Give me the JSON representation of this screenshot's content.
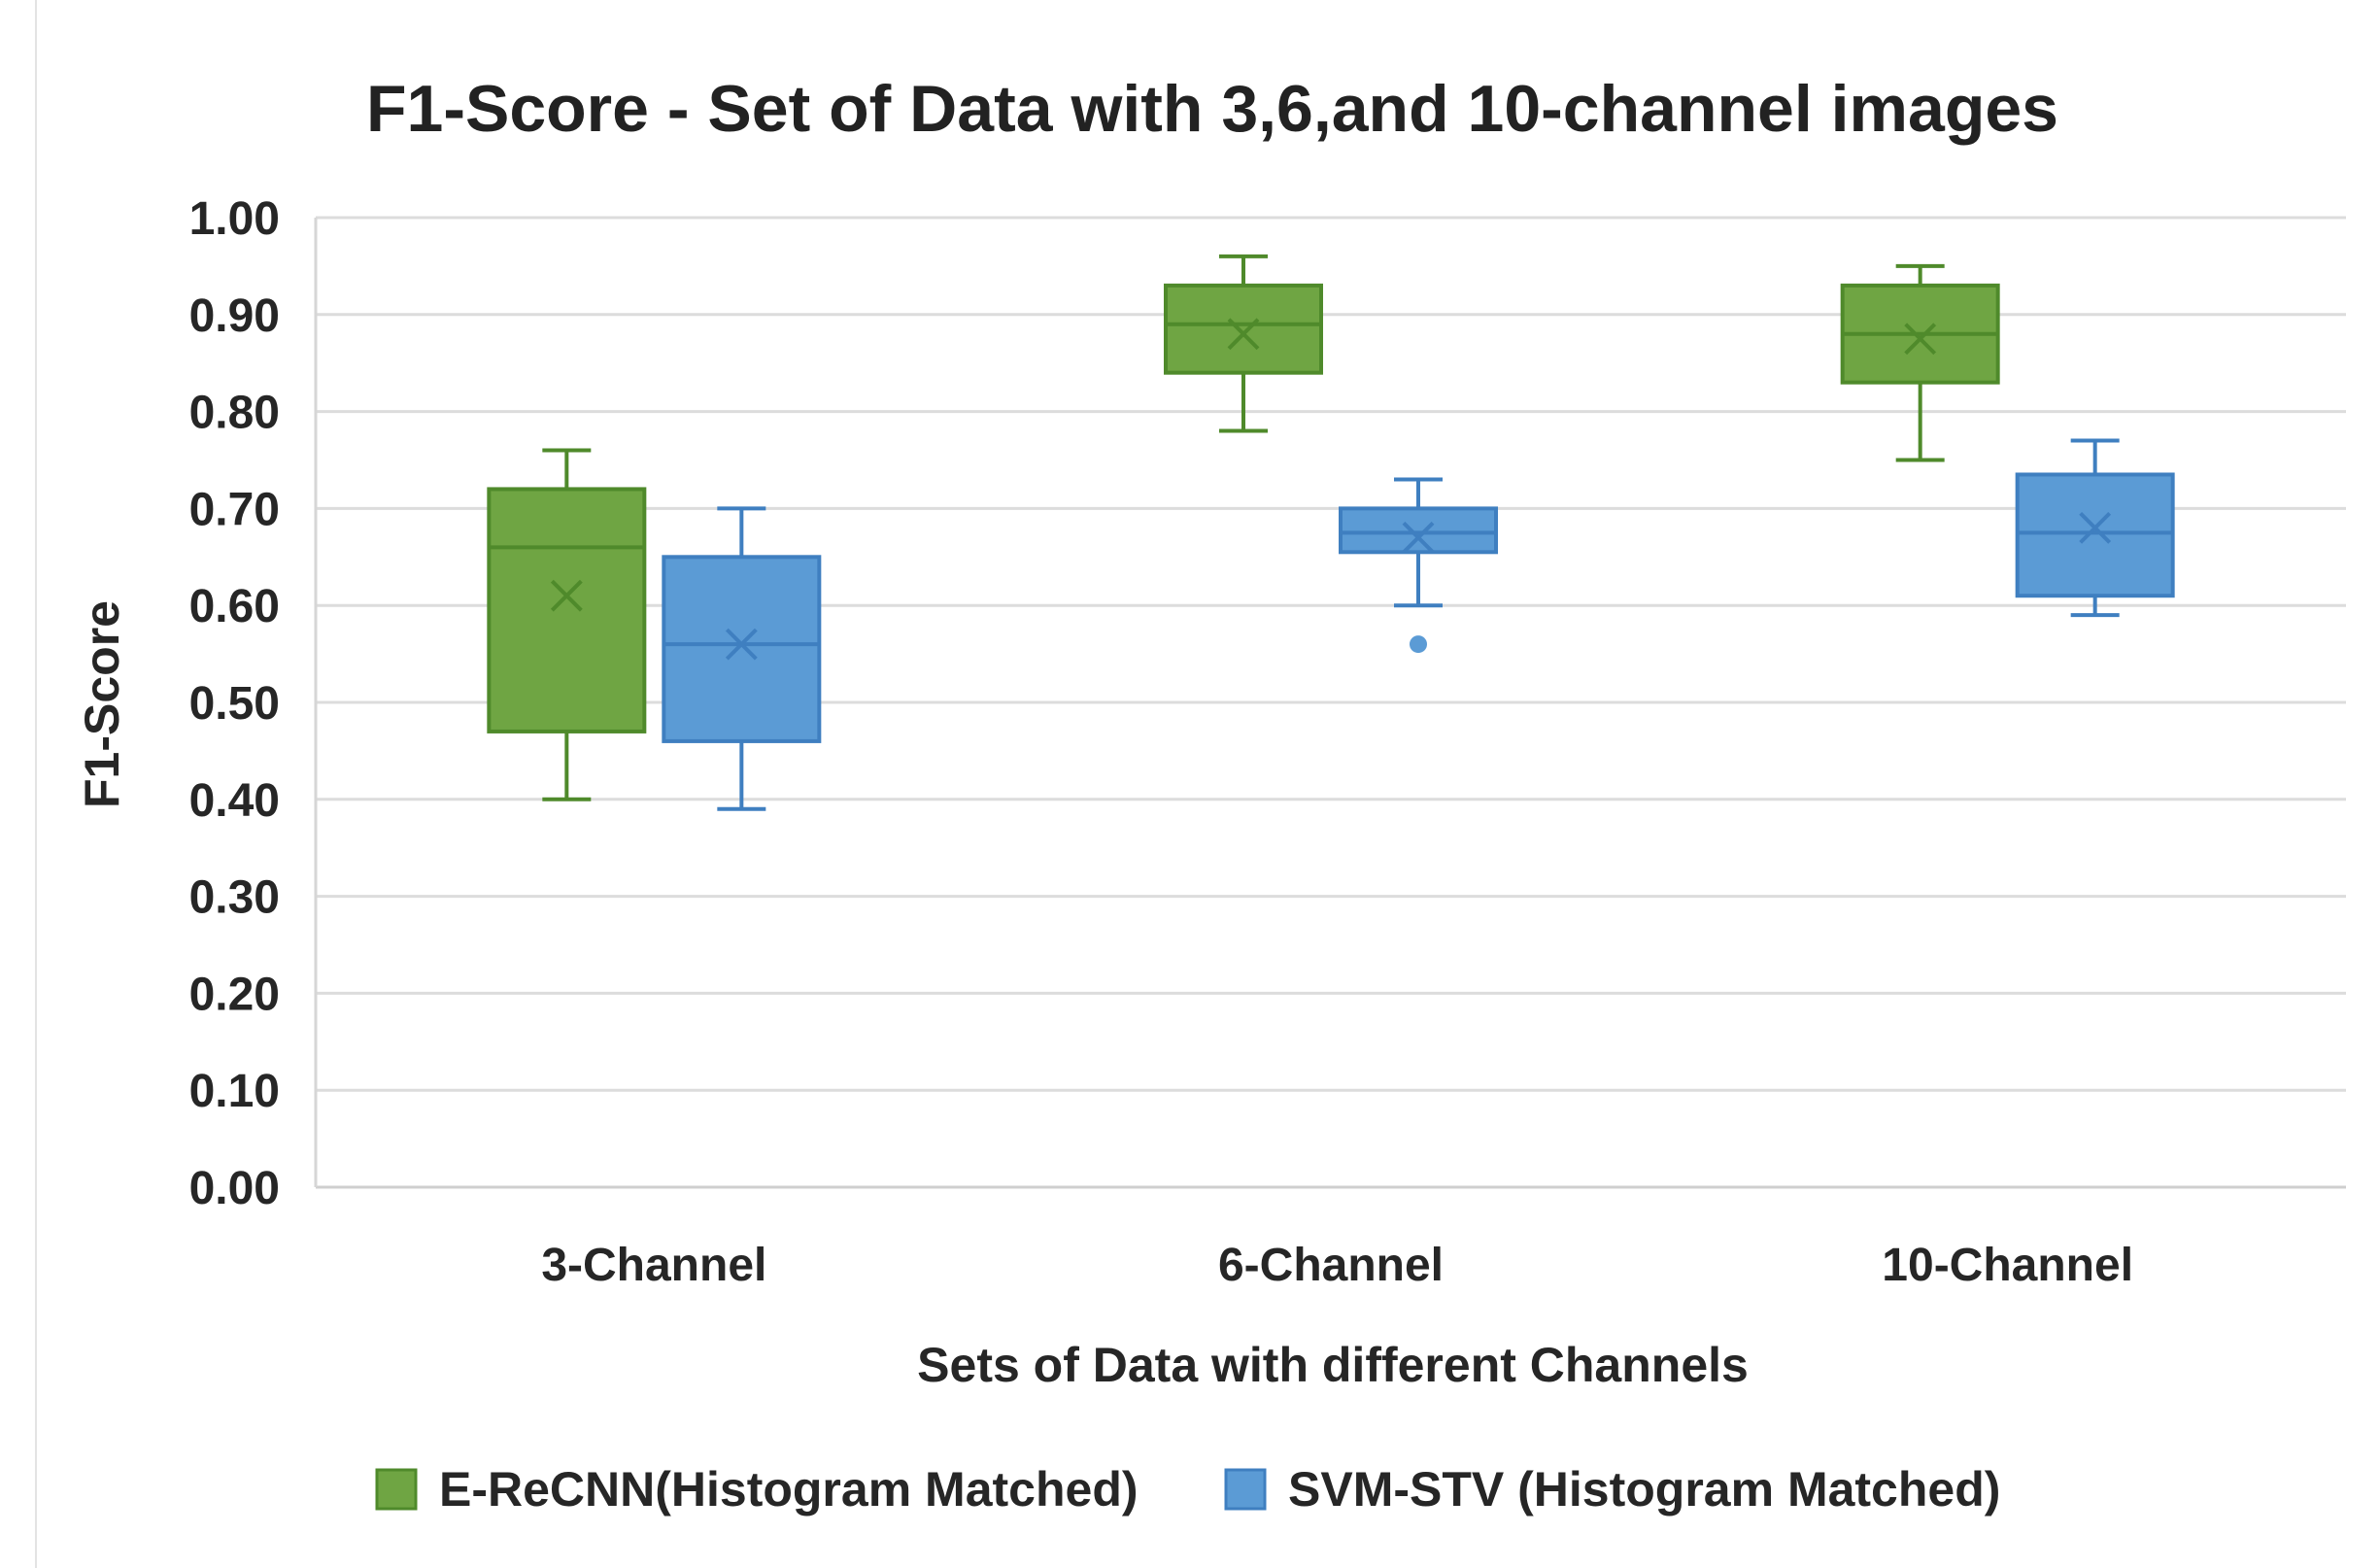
{
  "chart_data": {
    "type": "boxplot",
    "title": "F1-Score - Set of Data with 3,6,and 10-channel images",
    "xlabel": "Sets of Data with different Channels",
    "ylabel": "F1-Score",
    "ylim": [
      0,
      1
    ],
    "ytick_labels": [
      "0.00",
      "0.10",
      "0.20",
      "0.30",
      "0.40",
      "0.50",
      "0.60",
      "0.70",
      "0.80",
      "0.90",
      "1.00"
    ],
    "categories": [
      "3-Channel",
      "6-Channel",
      "10-Channel"
    ],
    "legend_position": "bottom",
    "grid": true,
    "series": [
      {
        "name": "E-ReCNN(Histogram Matched)",
        "color": "#6fa543",
        "edge_color": "#4f8a2b",
        "boxes": [
          {
            "min": 0.4,
            "q1": 0.47,
            "median": 0.66,
            "q3": 0.72,
            "max": 0.76,
            "mean": 0.61,
            "outliers": []
          },
          {
            "min": 0.78,
            "q1": 0.84,
            "median": 0.89,
            "q3": 0.93,
            "max": 0.96,
            "mean": 0.88,
            "outliers": []
          },
          {
            "min": 0.75,
            "q1": 0.83,
            "median": 0.88,
            "q3": 0.93,
            "max": 0.95,
            "mean": 0.875,
            "outliers": []
          }
        ]
      },
      {
        "name": "SVM-STV (Histogram Matched)",
        "color": "#5b9bd5",
        "edge_color": "#3f7fc0",
        "boxes": [
          {
            "min": 0.39,
            "q1": 0.46,
            "median": 0.56,
            "q3": 0.65,
            "max": 0.7,
            "mean": 0.56,
            "outliers": []
          },
          {
            "min": 0.6,
            "q1": 0.655,
            "median": 0.675,
            "q3": 0.7,
            "max": 0.73,
            "mean": 0.67,
            "outliers": [
              0.56
            ]
          },
          {
            "min": 0.59,
            "q1": 0.61,
            "median": 0.675,
            "q3": 0.735,
            "max": 0.77,
            "mean": 0.68,
            "outliers": []
          }
        ]
      }
    ]
  }
}
